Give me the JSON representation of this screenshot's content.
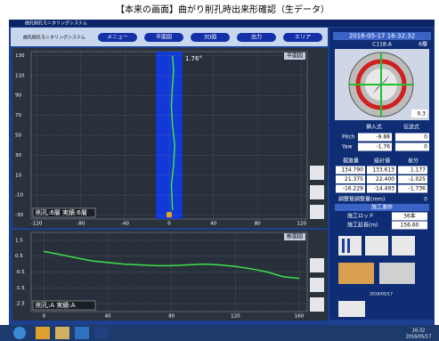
{
  "title": "【本来の画面】曲がり削孔時出来形確認（生データ）",
  "window_title": "曲孔削孔モニタリングシステム",
  "app_name": "曲孔削孔モニタリングシステム",
  "menu": [
    "メニュー",
    "平面図",
    "3D図",
    "出力",
    "エリア"
  ],
  "plan": {
    "label": "平面図",
    "status": "削孔:6層 実績:6層",
    "annotation": "1.76°",
    "xlim": [
      -125,
      125
    ],
    "ylim": [
      -34,
      134
    ],
    "xticks": [
      -120,
      -80,
      -40,
      0,
      40,
      80,
      120
    ],
    "yticks": [
      130,
      110,
      90,
      70,
      50,
      30,
      10,
      -10,
      -30
    ],
    "grid": true,
    "band": [
      -12,
      12
    ],
    "band_color": "#1238d8",
    "line": {
      "color": "#3ee04a",
      "x": [
        3,
        2,
        4,
        5,
        3,
        2,
        3,
        4,
        3
      ],
      "y": [
        -25,
        0,
        20,
        40,
        60,
        80,
        100,
        115,
        130
      ]
    }
  },
  "section": {
    "label": "断面図",
    "status": "削孔:A 実績:A",
    "xlim": [
      -8,
      165
    ],
    "ylim": [
      -3,
      2
    ],
    "xticks": [
      0,
      40,
      80,
      120,
      160
    ],
    "yticks": [
      1.5,
      0.5,
      -0.5,
      -1.5,
      -2.5
    ],
    "grid": true,
    "line": {
      "color": "#3ee04a",
      "x": [
        0,
        10,
        20,
        30,
        40,
        50,
        60,
        70,
        80,
        90,
        100,
        110,
        120,
        130,
        140,
        150,
        160
      ],
      "y": [
        0.8,
        0.6,
        0.4,
        0.2,
        0.1,
        0,
        -0.05,
        -0.1,
        -0.1,
        -0.05,
        0,
        -0.05,
        -0.15,
        -0.3,
        -0.5,
        -0.8,
        -0.9
      ]
    }
  },
  "panel": {
    "datetime": "2016-05-17 16:32:32",
    "id": "C118:A",
    "layer": "6層",
    "compass_value": "0.3",
    "t1": {
      "header": [
        "挿入式",
        "伝送式"
      ],
      "rows": [
        [
          "Pitch",
          "-9.88",
          "0"
        ],
        [
          "Yaw",
          "-1.76",
          "0"
        ]
      ]
    },
    "t2": {
      "header": [
        "掘進量",
        "設計値",
        "差分"
      ],
      "rows": [
        [
          "134.790",
          "133.613",
          "1.177"
        ],
        [
          "21.375",
          "22.400",
          "-1.025"
        ],
        [
          "-16.229",
          "-14.493",
          "-1.736"
        ]
      ]
    },
    "adjust": [
      "調整管調整量(mm)",
      "0"
    ],
    "progress": {
      "header": "施工進捗",
      "rows": [
        [
          "施工ロッド",
          "36本"
        ],
        [
          "施工延長(m)",
          "156.60"
        ]
      ]
    },
    "footer": "2016/05/17"
  },
  "taskbar": {
    "time": "16:32",
    "date": "2016/05/17"
  }
}
